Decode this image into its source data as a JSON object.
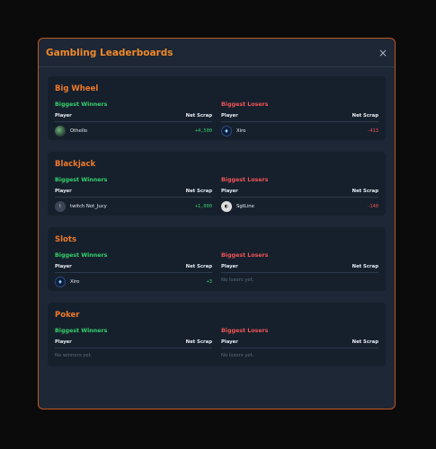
{
  "modal": {
    "title": "Gambling Leaderboards",
    "close": "×"
  },
  "headers": {
    "player": "Player",
    "net": "Net Scrap"
  },
  "labels": {
    "winners": "Biggest Winners",
    "losers": "Biggest Losers"
  },
  "games": [
    {
      "name": "Big Wheel",
      "winners": [
        {
          "player": "Othello",
          "net": "+4,500",
          "avatar": "othello-avatar"
        }
      ],
      "losers": [
        {
          "player": "Xiro",
          "net": "-413",
          "avatar": "xiro-avatar"
        }
      ]
    },
    {
      "name": "Blackjack",
      "winners": [
        {
          "player": "twitch Not_Jucy",
          "net": "+1,000",
          "avatar_text": "t"
        }
      ],
      "losers": [
        {
          "player": "SgtLine",
          "net": "-140",
          "avatar": "sgtline-avatar"
        }
      ]
    },
    {
      "name": "Slots",
      "winners": [
        {
          "player": "Xiro",
          "net": "+3",
          "avatar": "xiro-avatar"
        }
      ],
      "losers_empty": "No losers yet."
    },
    {
      "name": "Poker",
      "winners_empty": "No winners yet.",
      "losers_empty": "No losers yet."
    }
  ],
  "colors": {
    "accent": "#f0892a",
    "winner": "#35d06a",
    "loser": "#f05555"
  }
}
